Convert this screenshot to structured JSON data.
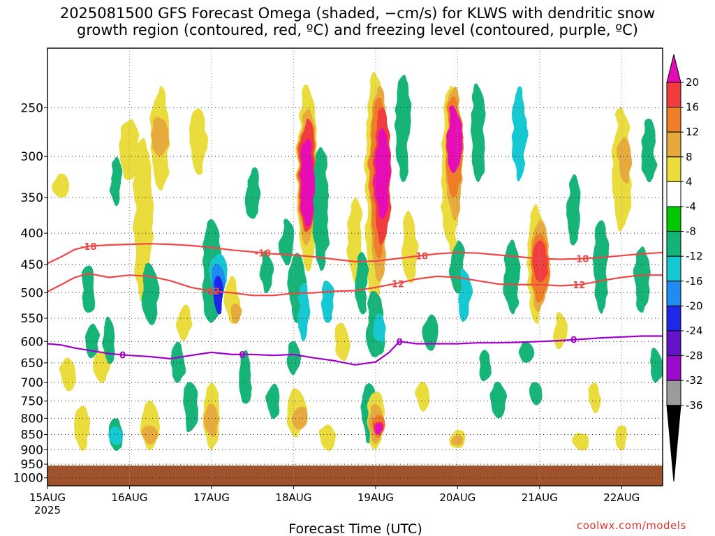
{
  "title_line1": "2025081500 GFS Forecast Omega (shaded, −cm/s) for KLWS with dendritic snow",
  "title_line2": "growth region (contoured, red, ºC) and freezing level (contoured, purple, ºC)",
  "credit": "coolwx.com/models",
  "chart_data": {
    "type": "heatmap",
    "title": "2025081500 GFS Forecast Omega (shaded, −cm/s) for KLWS with dendritic snow growth region (contoured, red, ºC) and freezing level (contoured, purple, ºC)",
    "xlabel": "Forecast Time (UTC)",
    "ylabel": "",
    "x_ticks": [
      "15AUG",
      "16AUG",
      "17AUG",
      "18AUG",
      "19AUG",
      "20AUG",
      "21AUG",
      "22AUG"
    ],
    "x_year_label": "2025",
    "xlim_hours": [
      0,
      180
    ],
    "y_ticks": [
      250,
      300,
      350,
      400,
      450,
      500,
      550,
      600,
      650,
      700,
      750,
      800,
      850,
      900,
      950,
      1000
    ],
    "ylim_hpa": [
      1030,
      200
    ],
    "y_scale": "log-pressure",
    "grid": true,
    "ground_level_hpa": 955,
    "colorbar": {
      "labels": [
        "20",
        "16",
        "12",
        "8",
        "4",
        "-4",
        "-8",
        "-12",
        "-16",
        "-20",
        "-24",
        "-28",
        "-32",
        "-36"
      ],
      "colors": [
        "#e60ab4",
        "#f03c3c",
        "#f07d28",
        "#e6aa3c",
        "#ebdc3c",
        "#ffffff",
        "#00c800",
        "#14b478",
        "#14c8d2",
        "#1e8cf0",
        "#1e28e6",
        "#6414c8",
        "#9b0acd",
        "#9b9b9b",
        "#000000"
      ]
    },
    "contours": [
      {
        "name": "-18",
        "color": "#f04646",
        "points": [
          [
            0,
            448
          ],
          [
            4,
            437
          ],
          [
            8,
            425
          ],
          [
            12,
            420
          ],
          [
            18,
            418
          ],
          [
            24,
            417
          ],
          [
            30,
            416
          ],
          [
            36,
            417
          ],
          [
            42,
            419
          ],
          [
            48,
            422
          ],
          [
            54,
            426
          ],
          [
            60,
            429
          ],
          [
            66,
            432
          ],
          [
            72,
            434
          ],
          [
            78,
            437
          ],
          [
            84,
            441
          ],
          [
            90,
            445
          ],
          [
            96,
            444
          ],
          [
            102,
            440
          ],
          [
            108,
            436
          ],
          [
            114,
            432
          ],
          [
            120,
            430
          ],
          [
            126,
            431
          ],
          [
            132,
            434
          ],
          [
            138,
            437
          ],
          [
            144,
            440
          ],
          [
            150,
            441
          ],
          [
            156,
            440
          ],
          [
            162,
            438
          ],
          [
            168,
            435
          ],
          [
            174,
            432
          ],
          [
            180,
            430
          ]
        ],
        "labels": [
          [
            12,
            "-18"
          ],
          [
            63,
            "-18"
          ],
          [
            109,
            "-18"
          ],
          [
            156,
            "-18"
          ]
        ]
      },
      {
        "name": "-12",
        "color": "#f04646",
        "points": [
          [
            0,
            498
          ],
          [
            4,
            485
          ],
          [
            8,
            472
          ],
          [
            12,
            465
          ],
          [
            18,
            472
          ],
          [
            24,
            468
          ],
          [
            30,
            470
          ],
          [
            36,
            478
          ],
          [
            42,
            490
          ],
          [
            48,
            497
          ],
          [
            54,
            500
          ],
          [
            60,
            505
          ],
          [
            66,
            505
          ],
          [
            72,
            501
          ],
          [
            78,
            500
          ],
          [
            84,
            497
          ],
          [
            90,
            496
          ],
          [
            96,
            490
          ],
          [
            102,
            483
          ],
          [
            108,
            475
          ],
          [
            114,
            470
          ],
          [
            120,
            472
          ],
          [
            126,
            478
          ],
          [
            132,
            484
          ],
          [
            138,
            485
          ],
          [
            144,
            485
          ],
          [
            150,
            487
          ],
          [
            156,
            485
          ],
          [
            162,
            478
          ],
          [
            168,
            472
          ],
          [
            174,
            468
          ],
          [
            180,
            468
          ]
        ],
        "labels": [
          [
            48,
            "-12"
          ],
          [
            102,
            "-12"
          ],
          [
            155,
            "-12"
          ]
        ]
      },
      {
        "name": "0",
        "color": "#a000c8",
        "points": [
          [
            0,
            605
          ],
          [
            4,
            608
          ],
          [
            8,
            615
          ],
          [
            12,
            620
          ],
          [
            18,
            628
          ],
          [
            24,
            632
          ],
          [
            30,
            635
          ],
          [
            36,
            640
          ],
          [
            42,
            632
          ],
          [
            48,
            625
          ],
          [
            54,
            630
          ],
          [
            60,
            630
          ],
          [
            66,
            632
          ],
          [
            72,
            630
          ],
          [
            78,
            638
          ],
          [
            84,
            645
          ],
          [
            90,
            655
          ],
          [
            96,
            648
          ],
          [
            100,
            625
          ],
          [
            103,
            600
          ],
          [
            108,
            605
          ],
          [
            114,
            605
          ],
          [
            120,
            605
          ],
          [
            126,
            603
          ],
          [
            132,
            603
          ],
          [
            138,
            602
          ],
          [
            144,
            600
          ],
          [
            150,
            598
          ],
          [
            156,
            595
          ],
          [
            162,
            592
          ],
          [
            168,
            590
          ],
          [
            174,
            588
          ],
          [
            180,
            588
          ]
        ],
        "labels": [
          [
            22,
            "0"
          ],
          [
            57,
            "0"
          ],
          [
            103,
            "0"
          ],
          [
            154,
            "0"
          ]
        ]
      }
    ]
  }
}
